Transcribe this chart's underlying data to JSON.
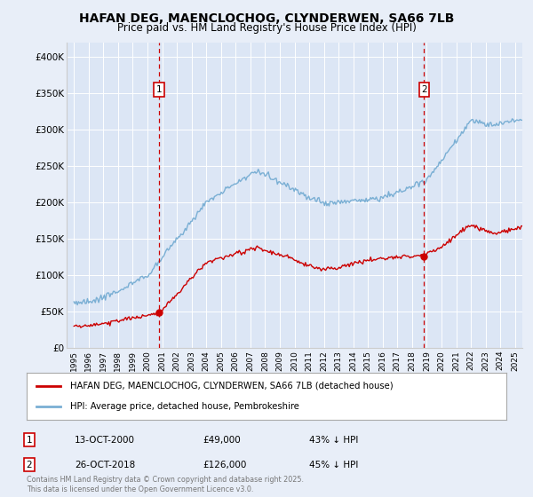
{
  "title_line1": "HAFAN DEG, MAENCLOCHOG, CLYNDERWEN, SA66 7LB",
  "title_line2": "Price paid vs. HM Land Registry's House Price Index (HPI)",
  "background_color": "#e8eef8",
  "plot_bg_color": "#dce6f5",
  "legend_entries": [
    "HAFAN DEG, MAENCLOCHOG, CLYNDERWEN, SA66 7LB (detached house)",
    "HPI: Average price, detached house, Pembrokeshire"
  ],
  "legend_colors": [
    "#cc0000",
    "#7aafd4"
  ],
  "marker1": {
    "label": "1",
    "date": "13-OCT-2000",
    "price": 49000,
    "pct": "43% ↓ HPI",
    "x_year": 2000.79
  },
  "marker2": {
    "label": "2",
    "date": "26-OCT-2018",
    "price": 126000,
    "pct": "45% ↓ HPI",
    "x_year": 2018.82
  },
  "footer": "Contains HM Land Registry data © Crown copyright and database right 2025.\nThis data is licensed under the Open Government Licence v3.0.",
  "ylim": [
    0,
    420000
  ],
  "yticks": [
    0,
    50000,
    100000,
    150000,
    200000,
    250000,
    300000,
    350000,
    400000
  ],
  "ytick_labels": [
    "£0",
    "£50K",
    "£100K",
    "£150K",
    "£200K",
    "£250K",
    "£300K",
    "£350K",
    "£400K"
  ],
  "xlim_start": 1994.5,
  "xlim_end": 2025.5
}
